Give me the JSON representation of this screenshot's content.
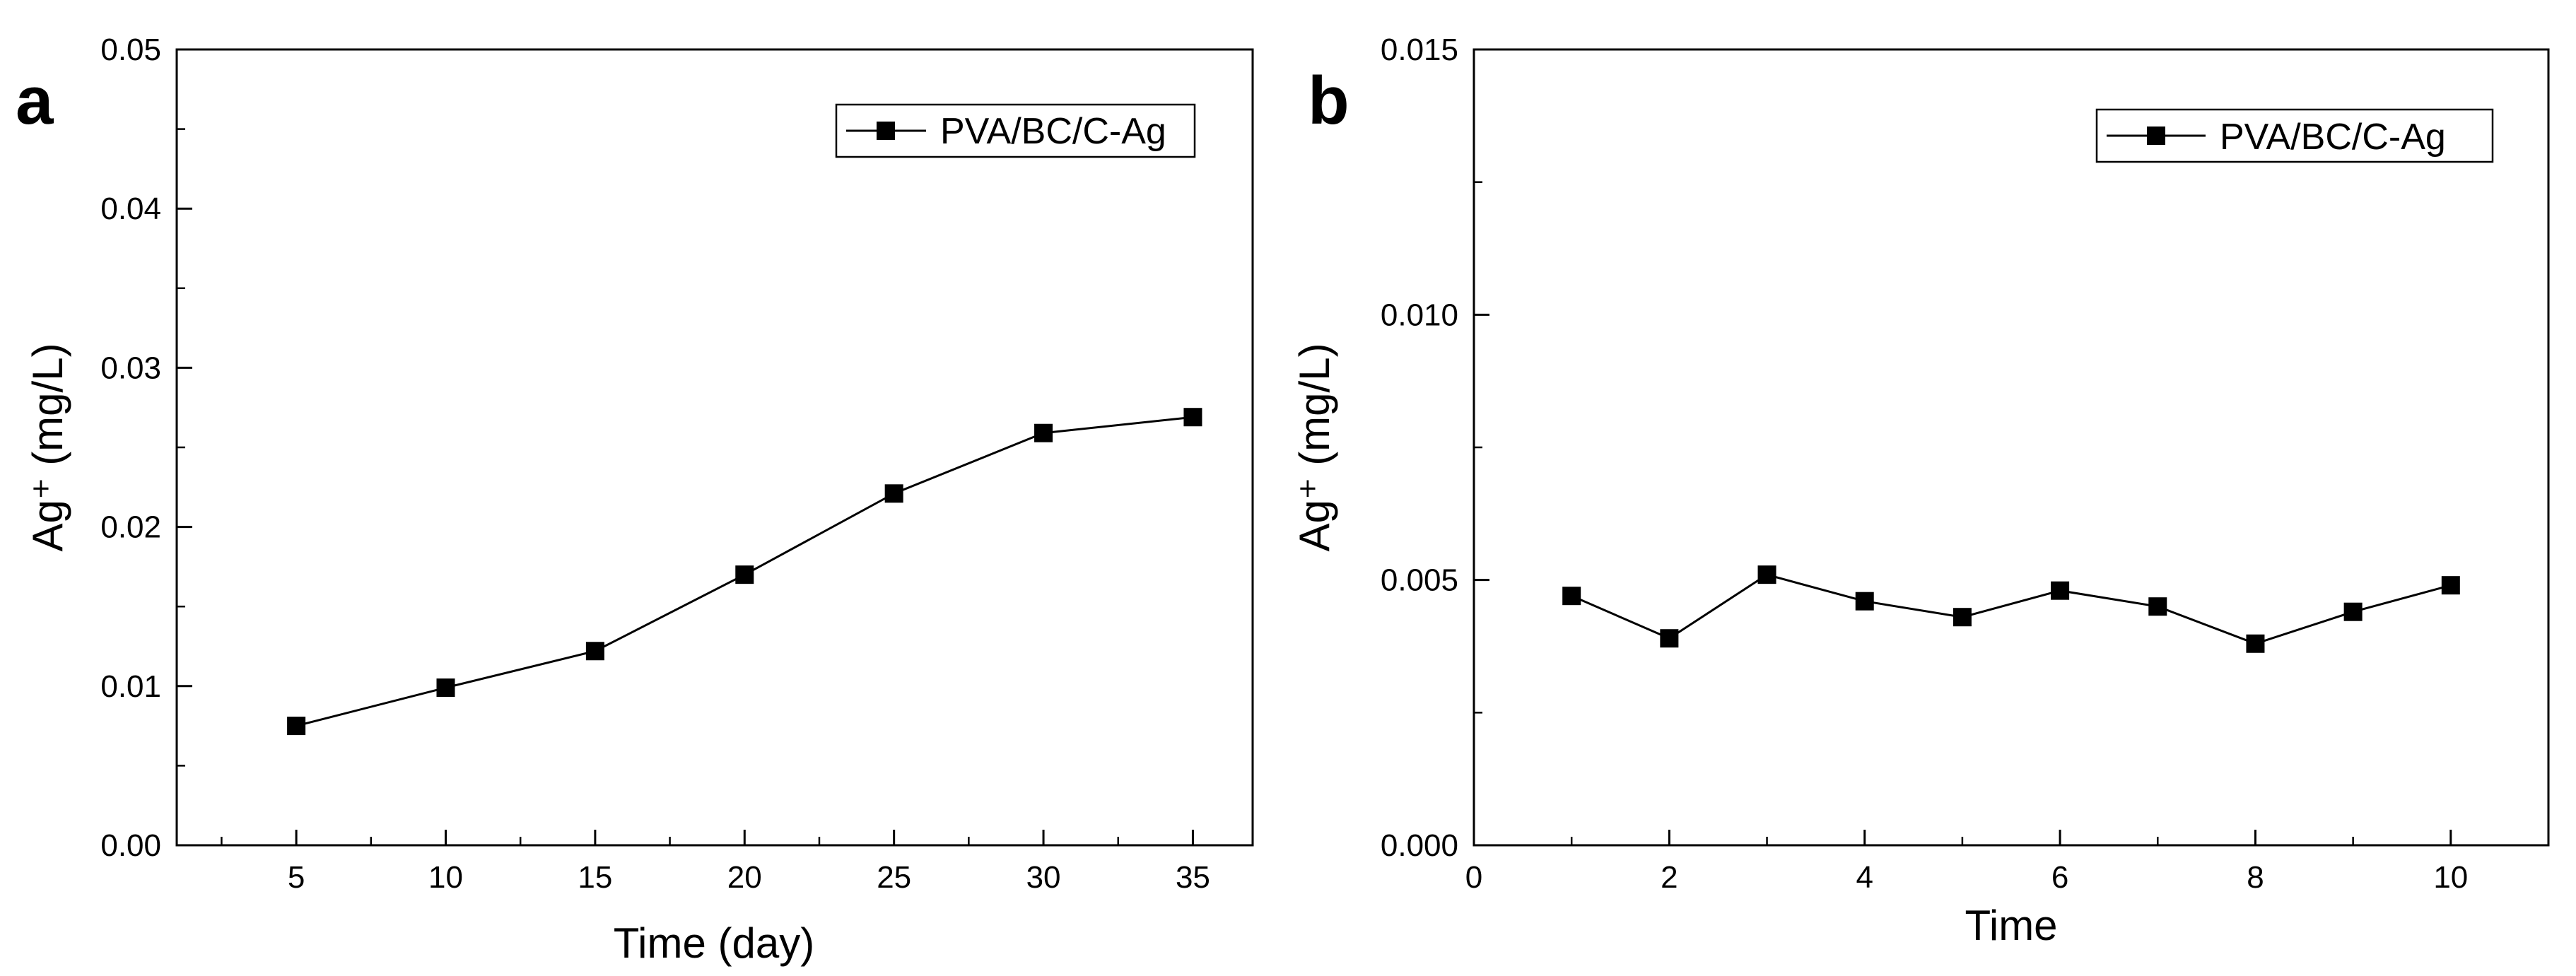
{
  "chart_data": [
    {
      "panel_label": "a",
      "type": "line",
      "title": "",
      "xlabel": "Time (day)",
      "ylabel": "Ag⁺ (mg/L)",
      "xlim": [
        1,
        37
      ],
      "ylim": [
        0,
        0.05
      ],
      "xticks": [
        5,
        10,
        15,
        20,
        25,
        30,
        35
      ],
      "xtick_labels": [
        "5",
        "10",
        "15",
        "20",
        "25",
        "30",
        "35"
      ],
      "xminor": [
        2.5,
        7.5,
        12.5,
        17.5,
        22.5,
        27.5,
        32.5
      ],
      "yticks": [
        0,
        0.01,
        0.02,
        0.03,
        0.04,
        0.05
      ],
      "ytick_labels": [
        "0.00",
        "0.01",
        "0.02",
        "0.03",
        "0.04",
        "0.05"
      ],
      "yminor": [
        0.005,
        0.015,
        0.025,
        0.035,
        0.045
      ],
      "grid": false,
      "legend_position": "top-right",
      "series": [
        {
          "name": "PVA/BC/C-Ag",
          "marker": "square",
          "x": [
            5,
            10,
            15,
            20,
            25,
            30,
            35
          ],
          "y": [
            0.0075,
            0.0099,
            0.0122,
            0.017,
            0.0221,
            0.0259,
            0.0269
          ]
        }
      ]
    },
    {
      "panel_label": "b",
      "type": "line",
      "title": "",
      "xlabel": "Time",
      "ylabel": "Ag⁺ (mg/L)",
      "xlim": [
        0,
        11
      ],
      "ylim": [
        0,
        0.015
      ],
      "xticks": [
        0,
        2,
        4,
        6,
        8,
        10
      ],
      "xtick_labels": [
        "0",
        "2",
        "4",
        "6",
        "8",
        "10"
      ],
      "xminor": [
        1,
        3,
        5,
        7,
        9
      ],
      "yticks": [
        0,
        0.005,
        0.01,
        0.015
      ],
      "ytick_labels": [
        "0.000",
        "0.005",
        "0.010",
        "0.015"
      ],
      "yminor": [
        0.0025,
        0.0075,
        0.0125
      ],
      "grid": false,
      "legend_position": "top-right",
      "series": [
        {
          "name": "PVA/BC/C-Ag",
          "marker": "square",
          "x": [
            1,
            2,
            3,
            4,
            5,
            6,
            7,
            8,
            9,
            10
          ],
          "y": [
            0.0047,
            0.0039,
            0.0051,
            0.0046,
            0.0043,
            0.0048,
            0.0045,
            0.0038,
            0.0044,
            0.0049
          ]
        }
      ]
    }
  ]
}
